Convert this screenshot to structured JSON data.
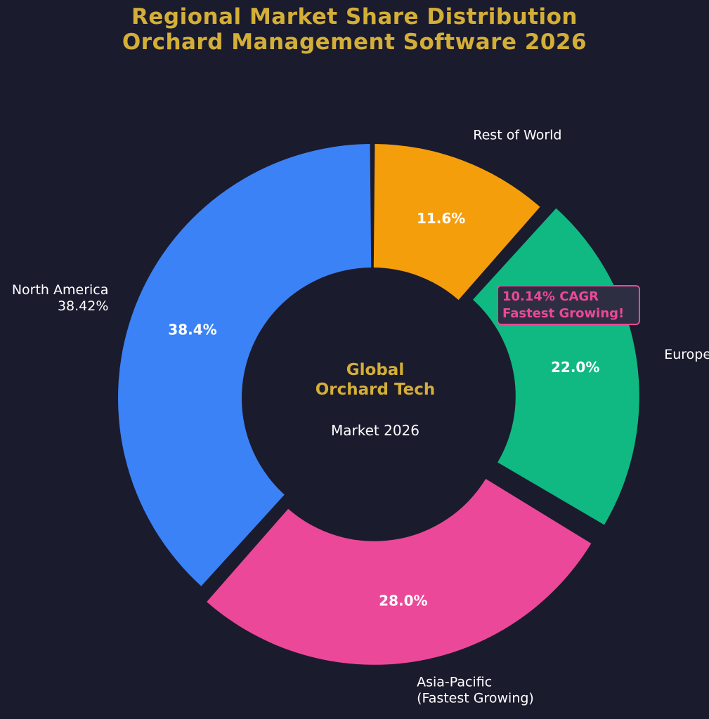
{
  "title_line1": "Regional Market Share Distribution",
  "title_line2": "Orchard Management Software 2026",
  "center": {
    "line1": "Global",
    "line2": "Orchard Tech",
    "sub": "Market 2026"
  },
  "annotation": {
    "line1": "10.14% CAGR",
    "line2": "Fastest Growing!"
  },
  "chart_data": {
    "type": "pie",
    "style": "donut",
    "start": "top, clockwise",
    "slices": [
      {
        "label": "Rest of World",
        "label_lines": [
          "Rest of World"
        ],
        "value": 11.6,
        "pct_label": "11.6%",
        "color": "#f59e0b",
        "explode": 0.0
      },
      {
        "label": "Europe",
        "label_lines": [
          "Europe"
        ],
        "value": 22.0,
        "pct_label": "22.0%",
        "color": "#10b981",
        "explode": 0.05
      },
      {
        "label": "Asia-Pacific (Fastest Growing)",
        "label_lines": [
          "Asia-Pacific",
          "(Fastest Growing)"
        ],
        "value": 28.0,
        "pct_label": "28.0%",
        "color": "#ec4899",
        "explode": 0.05
      },
      {
        "label": "North America",
        "label_lines": [
          "North America",
          "38.42%"
        ],
        "value": 38.4,
        "pct_label": "38.4%",
        "color": "#3b82f6",
        "explode": 0.0
      }
    ]
  }
}
